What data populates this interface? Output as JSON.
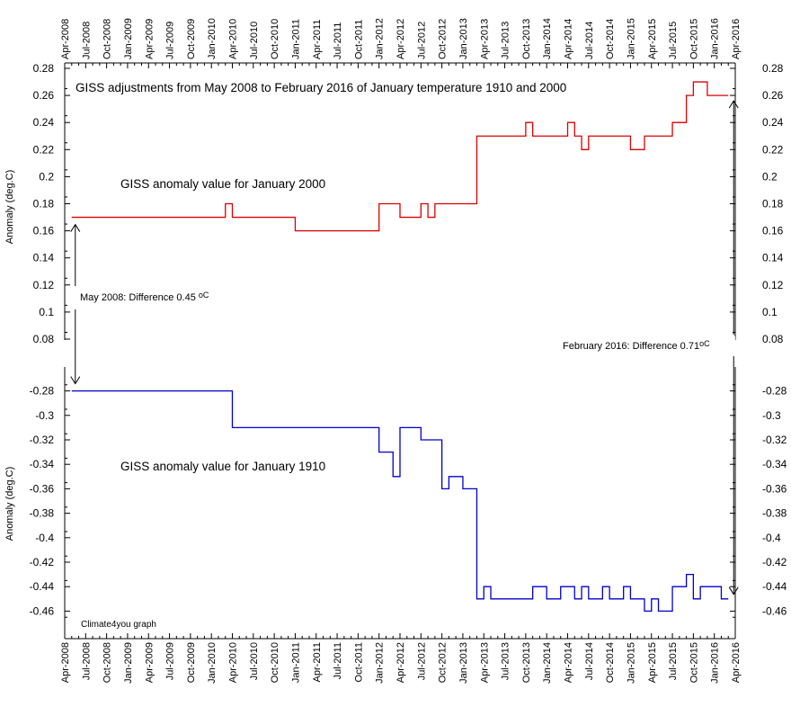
{
  "chart_data": {
    "type": "line",
    "title": "GISS adjustments from May 2008 to February 2016 of January temperature 1910 and 2000",
    "credit": "Climate4you graph",
    "x_tick_labels": [
      "Apr-2008",
      "Jul-2008",
      "Oct-2008",
      "Jan-2009",
      "Apr-2009",
      "Jul-2009",
      "Oct-2009",
      "Jan-2010",
      "Apr-2010",
      "Jul-2010",
      "Oct-2010",
      "Jan-2011",
      "Apr-2011",
      "Jul-2011",
      "Oct-2011",
      "Jan-2012",
      "Apr-2012",
      "Jul-2012",
      "Oct-2012",
      "Jan-2013",
      "Apr-2013",
      "Jul-2013",
      "Oct-2013",
      "Jan-2014",
      "Apr-2014",
      "Jul-2014",
      "Oct-2014",
      "Jan-2015",
      "Apr-2015",
      "Jul-2015",
      "Oct-2015",
      "Jan-2016",
      "Apr-2016"
    ],
    "panels": [
      {
        "id": "upper",
        "ylabel": "Anomaly (deg.C)",
        "ylim": [
          0.08,
          0.28
        ],
        "y_ticks": [
          0.08,
          0.1,
          0.12,
          0.14,
          0.16,
          0.18,
          0.2,
          0.22,
          0.24,
          0.26,
          0.28
        ],
        "y_tick_labels": [
          "0.08",
          "0.1",
          "0.12",
          "0.14",
          "0.16",
          "0.18",
          "0.2",
          "0.22",
          "0.24",
          "0.26",
          "0.28"
        ],
        "series": [
          {
            "name": "GISS anomaly value for January 2000",
            "color": "#dd0000",
            "step": true,
            "x": [
              "2008-05",
              "2010-03",
              "2010-04",
              "2011-01",
              "2012-01",
              "2012-04",
              "2012-07",
              "2012-08",
              "2012-09",
              "2013-03",
              "2013-10",
              "2013-11",
              "2014-04",
              "2014-05",
              "2014-06",
              "2014-07",
              "2015-01",
              "2015-03",
              "2015-07",
              "2015-09",
              "2015-10",
              "2015-12",
              "2016-02"
            ],
            "y": [
              0.17,
              0.18,
              0.17,
              0.16,
              0.18,
              0.17,
              0.18,
              0.17,
              0.18,
              0.23,
              0.24,
              0.23,
              0.24,
              0.23,
              0.22,
              0.23,
              0.22,
              0.23,
              0.24,
              0.26,
              0.27,
              0.26,
              0.26
            ]
          }
        ],
        "labels": [
          {
            "text": "GISS anomaly value for January 2000",
            "color": "#dd0000"
          }
        ]
      },
      {
        "id": "lower",
        "ylabel": "Anomaly (deg.C)",
        "ylim": [
          -0.47,
          -0.27
        ],
        "y_ticks": [
          -0.46,
          -0.44,
          -0.42,
          -0.4,
          -0.38,
          -0.36,
          -0.34,
          -0.32,
          -0.3,
          -0.28
        ],
        "y_tick_labels": [
          "-0.46",
          "-0.44",
          "-0.42",
          "-0.4",
          "-0.38",
          "-0.36",
          "-0.34",
          "-0.32",
          "-0.3",
          "-0.28"
        ],
        "series": [
          {
            "name": "GISS anomaly value for January 1910",
            "color": "#0000cc",
            "step": true,
            "x": [
              "2008-05",
              "2010-04",
              "2012-01",
              "2012-03",
              "2012-04",
              "2012-07",
              "2012-10",
              "2012-11",
              "2013-01",
              "2013-03",
              "2013-04",
              "2013-05",
              "2013-11",
              "2014-01",
              "2014-03",
              "2014-05",
              "2014-06",
              "2014-07",
              "2014-09",
              "2014-10",
              "2014-12",
              "2015-01",
              "2015-03",
              "2015-04",
              "2015-05",
              "2015-07",
              "2015-09",
              "2015-10",
              "2015-11",
              "2016-02"
            ],
            "y": [
              -0.28,
              -0.31,
              -0.33,
              -0.35,
              -0.31,
              -0.32,
              -0.36,
              -0.35,
              -0.36,
              -0.45,
              -0.44,
              -0.45,
              -0.44,
              -0.45,
              -0.44,
              -0.45,
              -0.44,
              -0.45,
              -0.44,
              -0.45,
              -0.44,
              -0.45,
              -0.46,
              -0.45,
              -0.46,
              -0.44,
              -0.43,
              -0.45,
              -0.44,
              -0.45
            ]
          }
        ],
        "labels": [
          {
            "text": "GISS anomaly value for January 1910",
            "color": "#0000cc"
          }
        ]
      }
    ],
    "annotations": [
      {
        "id": "may2008",
        "text_main": "May 2008: Difference 0.45 ",
        "text_unit": "oC"
      },
      {
        "id": "feb2016",
        "text_main": "February 2016: Difference 0.71",
        "text_unit": "oC"
      }
    ]
  }
}
